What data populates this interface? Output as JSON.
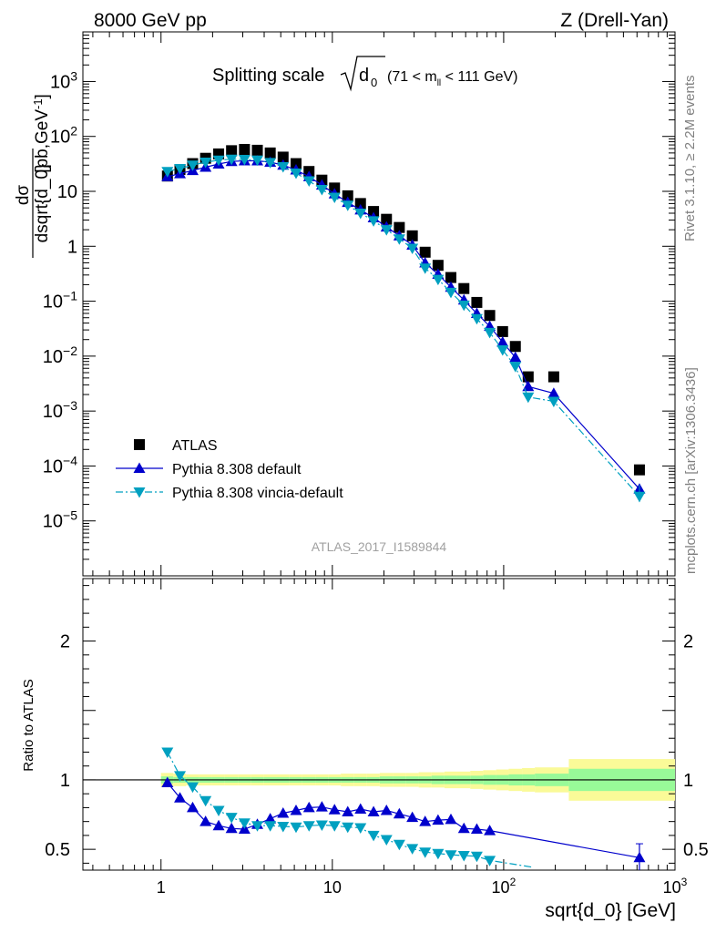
{
  "header": {
    "left": "8000 GeV pp",
    "right": "Z (Drell-Yan)"
  },
  "side": {
    "rivet": "Rivet 3.1.10, ≥ 2.2M events",
    "mcplots": "mcplots.cern.ch [arXiv:1306.3436]"
  },
  "plot_title": {
    "main": "Splitting scale",
    "radicand": "d",
    "radicand_sub": "0",
    "cut_pre": "(71 < m",
    "cut_sub": "ll",
    "cut_post": " < 111 GeV)"
  },
  "analysis_id": "ATLAS_2017_I1589844",
  "colors": {
    "data": "#000000",
    "default": "#0000cc",
    "vincia": "#00a0c0",
    "band_inner": "#98fa98",
    "band_outer": "#fafa98"
  },
  "chart_data": [
    {
      "type": "scatter",
      "panel": "main",
      "ylabel": "dσ / dsqrt{d_0} [pb,GeV⁻¹]",
      "xscale": "log",
      "yscale": "log",
      "xlim": [
        0.35,
        1000
      ],
      "ylim": [
        1e-06,
        8000
      ],
      "x_ticks": [
        {
          "value": 1,
          "label": "1"
        },
        {
          "value": 10,
          "label": "10"
        },
        {
          "value": 100,
          "label": "10",
          "sup": "2"
        },
        {
          "value": 1000,
          "label": "10",
          "sup": "3"
        }
      ],
      "y_ticks": [
        {
          "value": 1e-05,
          "label": "10",
          "sup": "−5"
        },
        {
          "value": 0.0001,
          "label": "10",
          "sup": "−4"
        },
        {
          "value": 0.001,
          "label": "10",
          "sup": "−3"
        },
        {
          "value": 0.01,
          "label": "10",
          "sup": "−2"
        },
        {
          "value": 0.1,
          "label": "10",
          "sup": "−1"
        },
        {
          "value": 1,
          "label": "1"
        },
        {
          "value": 10,
          "label": "10"
        },
        {
          "value": 100,
          "label": "10",
          "sup": "2"
        },
        {
          "value": 1000,
          "label": "10",
          "sup": "3"
        }
      ],
      "legend_placement": "lower-left",
      "series": [
        {
          "name": "ATLAS",
          "marker": "square",
          "x": [
            1.09,
            1.29,
            1.53,
            1.82,
            2.17,
            2.58,
            3.07,
            3.65,
            4.34,
            5.16,
            6.14,
            7.31,
            8.69,
            10.3,
            12.3,
            14.6,
            17.4,
            20.7,
            24.6,
            29.3,
            34.8,
            41.4,
            49.2,
            58.6,
            69.7,
            82.9,
            98.6,
            117,
            139,
            196,
            620
          ],
          "y": [
            19,
            25,
            32,
            40,
            48,
            55,
            58,
            56,
            50,
            42,
            32,
            23,
            16,
            11.5,
            8.3,
            6.0,
            4.3,
            3.1,
            2.2,
            1.55,
            0.78,
            0.45,
            0.27,
            0.17,
            0.095,
            0.055,
            0.028,
            0.015,
            0.0042,
            0.0042,
            8.5e-05
          ]
        },
        {
          "name": "Pythia 8.308 default",
          "marker": "triangle-up",
          "line": "solid",
          "x": [
            1.09,
            1.29,
            1.53,
            1.82,
            2.17,
            2.58,
            3.07,
            3.65,
            4.34,
            5.16,
            6.14,
            7.31,
            8.69,
            10.3,
            12.3,
            14.6,
            17.4,
            20.7,
            24.6,
            29.3,
            34.8,
            41.4,
            49.2,
            58.6,
            69.7,
            82.9,
            98.6,
            117,
            139,
            196,
            620
          ],
          "y": [
            18.5,
            21,
            24,
            27.5,
            31.5,
            35,
            36,
            36,
            34,
            30,
            24.5,
            18.5,
            13,
            9.0,
            6.3,
            4.6,
            3.3,
            2.25,
            1.55,
            1.05,
            0.5,
            0.31,
            0.18,
            0.105,
            0.06,
            0.035,
            0.018,
            0.0095,
            0.0028,
            0.0021,
            3.8e-05
          ]
        },
        {
          "name": "Pythia 8.308 vincia-default",
          "marker": "triangle-down",
          "line": "dashdot",
          "x": [
            1.09,
            1.29,
            1.53,
            1.82,
            2.17,
            2.58,
            3.07,
            3.65,
            4.34,
            5.16,
            6.14,
            7.31,
            8.69,
            10.3,
            12.3,
            14.6,
            17.4,
            20.7,
            24.6,
            29.3,
            34.8,
            41.4,
            49.2,
            58.6,
            69.7,
            82.9,
            98.6,
            117,
            139,
            196,
            620
          ],
          "y": [
            23,
            26,
            30,
            34,
            37,
            38.5,
            38,
            37,
            33.5,
            28,
            21.5,
            15.5,
            10.8,
            7.8,
            5.6,
            4.0,
            2.9,
            2.0,
            1.36,
            0.92,
            0.4,
            0.25,
            0.145,
            0.085,
            0.048,
            0.027,
            0.013,
            0.0065,
            0.0018,
            0.0015,
            2.8e-05
          ]
        }
      ]
    },
    {
      "type": "line",
      "panel": "ratio",
      "ylabel": "Ratio to ATLAS",
      "xlabel": "sqrt{d_0} [GeV]",
      "xscale": "log",
      "xlim": [
        0.35,
        1000
      ],
      "ylim": [
        0.35,
        2.45
      ],
      "y_ticks": [
        {
          "value": 0.5,
          "label": "0.5"
        },
        {
          "value": 1,
          "label": "1"
        },
        {
          "value": 2,
          "label": "2"
        }
      ],
      "uncertainty_bands": {
        "x_edges": [
          1.0,
          1.18,
          1.4,
          1.66,
          1.98,
          2.36,
          2.81,
          3.34,
          3.97,
          4.72,
          5.62,
          6.68,
          7.95,
          9.46,
          11.2,
          13.4,
          15.9,
          18.9,
          22.5,
          26.8,
          31.9,
          37.9,
          45.1,
          53.6,
          63.8,
          75.9,
          90.3,
          107,
          128,
          152,
          240,
          1000
        ],
        "outer_half_width": [
          0.05,
          0.045,
          0.04,
          0.04,
          0.04,
          0.04,
          0.04,
          0.04,
          0.04,
          0.04,
          0.04,
          0.04,
          0.04,
          0.04,
          0.045,
          0.045,
          0.045,
          0.05,
          0.05,
          0.05,
          0.055,
          0.055,
          0.06,
          0.06,
          0.065,
          0.07,
          0.075,
          0.08,
          0.085,
          0.09,
          0.15
        ],
        "inner_half_width": [
          0.025,
          0.02,
          0.02,
          0.02,
          0.02,
          0.02,
          0.02,
          0.02,
          0.02,
          0.02,
          0.02,
          0.02,
          0.02,
          0.02,
          0.02,
          0.02,
          0.02,
          0.025,
          0.025,
          0.025,
          0.025,
          0.03,
          0.03,
          0.03,
          0.03,
          0.035,
          0.035,
          0.04,
          0.04,
          0.045,
          0.08
        ]
      },
      "series": [
        {
          "name": "Pythia 8.308 default",
          "x": [
            1.09,
            1.29,
            1.53,
            1.82,
            2.17,
            2.58,
            3.07,
            3.65,
            4.34,
            5.16,
            6.14,
            7.31,
            8.69,
            10.3,
            12.3,
            14.6,
            17.4,
            20.7,
            24.6,
            29.3,
            34.8,
            41.4,
            49.2,
            58.6,
            69.7,
            82.9,
            620
          ],
          "y": [
            0.98,
            0.87,
            0.8,
            0.7,
            0.67,
            0.65,
            0.645,
            0.68,
            0.72,
            0.76,
            0.78,
            0.8,
            0.805,
            0.785,
            0.77,
            0.79,
            0.77,
            0.78,
            0.755,
            0.73,
            0.7,
            0.71,
            0.715,
            0.65,
            0.645,
            0.635,
            0.44
          ],
          "err_index": 26,
          "err": 0.1
        },
        {
          "name": "Pythia 8.308 vincia-default",
          "x": [
            1.09,
            1.29,
            1.53,
            1.82,
            2.17,
            2.58,
            3.07,
            3.65,
            4.34,
            5.16,
            6.14,
            7.31,
            8.69,
            10.3,
            12.3,
            14.6,
            17.4,
            20.7,
            24.6,
            29.3,
            34.8,
            41.4,
            49.2,
            58.6,
            69.7,
            82.9,
            150
          ],
          "y": [
            1.2,
            1.03,
            0.95,
            0.85,
            0.78,
            0.73,
            0.69,
            0.67,
            0.67,
            0.665,
            0.66,
            0.67,
            0.675,
            0.67,
            0.66,
            0.655,
            0.6,
            0.57,
            0.535,
            0.505,
            0.48,
            0.47,
            0.46,
            0.455,
            0.45,
            0.42,
            0.37
          ]
        }
      ]
    }
  ]
}
